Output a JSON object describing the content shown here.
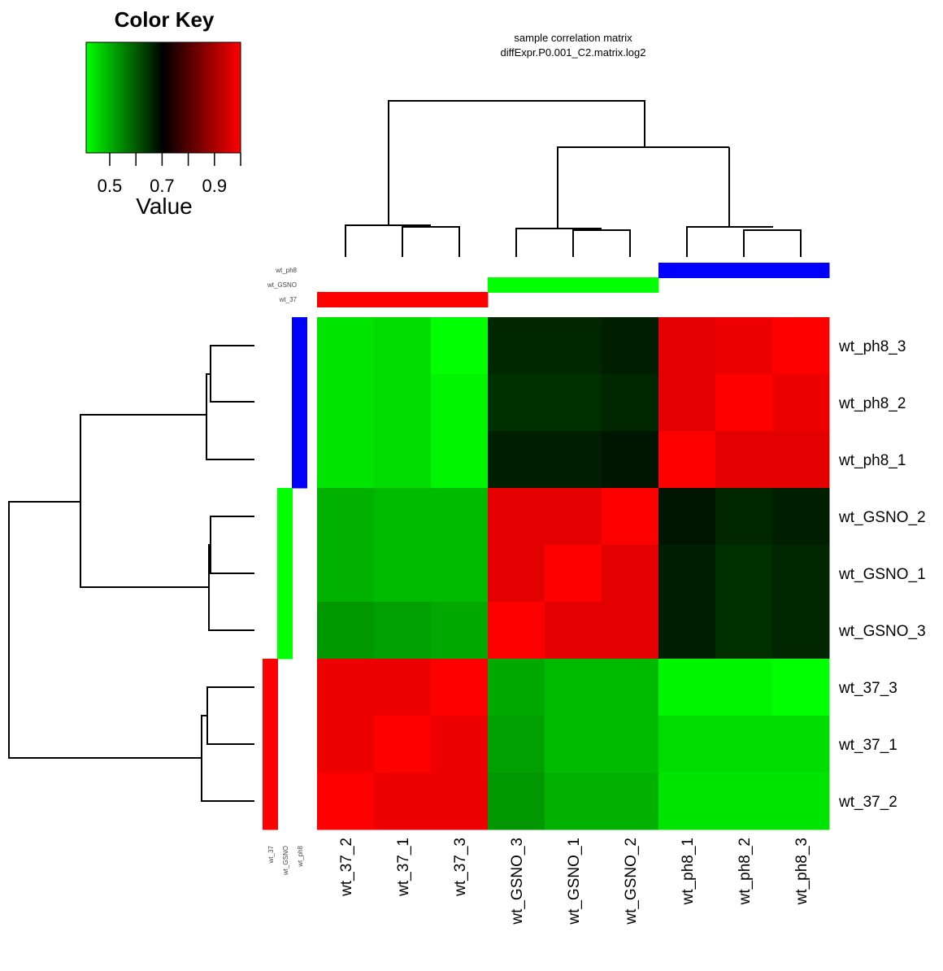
{
  "chart_data": {
    "type": "heatmap",
    "title": "sample correlation matrix",
    "subtitle": "diffExpr.P0.001_C2.matrix.log2",
    "columns": [
      "wt_37_2",
      "wt_37_1",
      "wt_37_3",
      "wt_GSNO_3",
      "wt_GSNO_1",
      "wt_GSNO_2",
      "wt_ph8_1",
      "wt_ph8_2",
      "wt_ph8_3"
    ],
    "rows": [
      "wt_ph8_3",
      "wt_ph8_2",
      "wt_ph8_1",
      "wt_GSNO_2",
      "wt_GSNO_1",
      "wt_GSNO_3",
      "wt_37_3",
      "wt_37_1",
      "wt_37_2"
    ],
    "values": [
      [
        0.44,
        0.45,
        0.41,
        0.66,
        0.66,
        0.67,
        0.97,
        0.98,
        1.0
      ],
      [
        0.44,
        0.45,
        0.42,
        0.65,
        0.65,
        0.66,
        0.97,
        1.0,
        0.98
      ],
      [
        0.44,
        0.45,
        0.42,
        0.67,
        0.67,
        0.68,
        1.0,
        0.97,
        0.97
      ],
      [
        0.5,
        0.49,
        0.49,
        0.97,
        0.97,
        1.0,
        0.68,
        0.66,
        0.67
      ],
      [
        0.5,
        0.49,
        0.49,
        0.97,
        1.0,
        0.97,
        0.67,
        0.65,
        0.66
      ],
      [
        0.53,
        0.52,
        0.51,
        1.0,
        0.97,
        0.97,
        0.67,
        0.65,
        0.66
      ],
      [
        0.98,
        0.98,
        1.0,
        0.51,
        0.49,
        0.49,
        0.42,
        0.42,
        0.41
      ],
      [
        0.98,
        1.0,
        0.98,
        0.52,
        0.49,
        0.49,
        0.45,
        0.45,
        0.45
      ],
      [
        1.0,
        0.98,
        0.98,
        0.53,
        0.5,
        0.5,
        0.44,
        0.44,
        0.44
      ]
    ],
    "color_key": {
      "title": "Color Key",
      "xlabel": "Value",
      "range": [
        0.41,
        1.0
      ],
      "ticks": [
        0.5,
        0.7,
        0.9
      ],
      "colors": [
        "#00ff00",
        "#000000",
        "#ff0000"
      ]
    },
    "groups": [
      {
        "name": "wt_37",
        "color": "#ff0000"
      },
      {
        "name": "wt_GSNO",
        "color": "#00ff00"
      },
      {
        "name": "wt_ph8",
        "color": "#0000ff"
      }
    ],
    "column_groups": [
      "wt_37",
      "wt_37",
      "wt_37",
      "wt_GSNO",
      "wt_GSNO",
      "wt_GSNO",
      "wt_ph8",
      "wt_ph8",
      "wt_ph8"
    ],
    "row_groups": [
      "wt_ph8",
      "wt_ph8",
      "wt_ph8",
      "wt_GSNO",
      "wt_GSNO",
      "wt_GSNO",
      "wt_37",
      "wt_37",
      "wt_37"
    ],
    "column_group_labels": [
      "wt_ph8",
      "wt_GSNO",
      "wt_37"
    ],
    "row_group_labels": [
      "wt_37",
      "wt_GSNO",
      "wt_ph8"
    ]
  }
}
